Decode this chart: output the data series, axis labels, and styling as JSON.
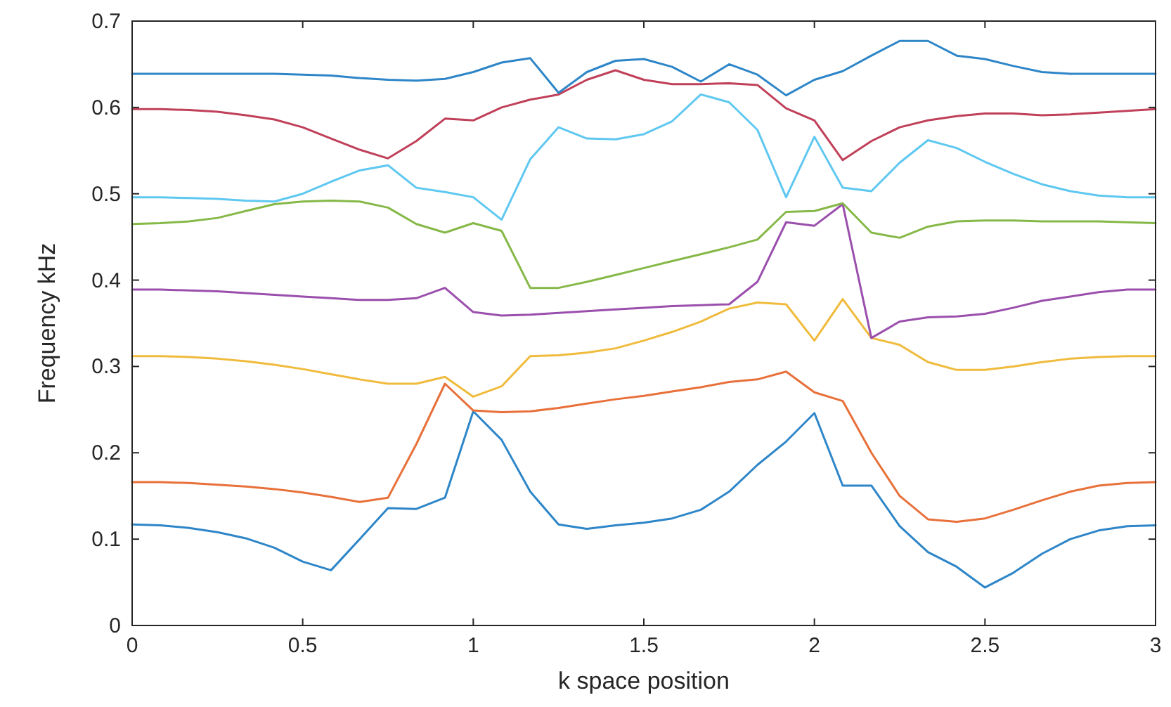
{
  "chart_data": {
    "type": "line",
    "xlabel": "k space position",
    "ylabel": "Frequency kHz",
    "xlim": [
      0,
      3
    ],
    "ylim": [
      0,
      0.7
    ],
    "xticks": [
      0,
      0.5,
      1,
      1.5,
      2,
      2.5,
      3
    ],
    "yticks": [
      0,
      0.1,
      0.2,
      0.3,
      0.4,
      0.5,
      0.6,
      0.7
    ],
    "grid": false,
    "marker": "none",
    "line_style": "solid",
    "x": [
      0,
      0.083,
      0.167,
      0.25,
      0.333,
      0.417,
      0.5,
      0.583,
      0.667,
      0.75,
      0.833,
      0.917,
      1,
      1.083,
      1.167,
      1.25,
      1.333,
      1.417,
      1.5,
      1.583,
      1.667,
      1.75,
      1.833,
      1.917,
      2,
      2.083,
      2.167,
      2.25,
      2.333,
      2.417,
      2.5,
      2.583,
      2.667,
      2.75,
      2.833,
      2.917,
      3
    ],
    "series": [
      {
        "color": "#2e86c8",
        "values": [
          0.117,
          0.116,
          0.113,
          0.108,
          0.101,
          0.09,
          0.074,
          0.064,
          0.1,
          0.136,
          0.135,
          0.148,
          0.248,
          0.215,
          0.155,
          0.117,
          0.112,
          0.116,
          0.119,
          0.124,
          0.134,
          0.155,
          0.186,
          0.213,
          0.246,
          0.162,
          0.162,
          0.115,
          0.085,
          0.068,
          0.044,
          0.061,
          0.083,
          0.1,
          0.11,
          0.115,
          0.116
        ]
      },
      {
        "color": "#e8703a",
        "values": [
          0.166,
          0.166,
          0.165,
          0.163,
          0.161,
          0.158,
          0.154,
          0.149,
          0.143,
          0.148,
          0.21,
          0.28,
          0.249,
          0.247,
          0.248,
          0.252,
          0.257,
          0.262,
          0.266,
          0.271,
          0.276,
          0.282,
          0.285,
          0.294,
          0.27,
          0.26,
          0.2,
          0.15,
          0.123,
          0.12,
          0.124,
          0.134,
          0.145,
          0.155,
          0.162,
          0.165,
          0.166
        ]
      },
      {
        "color": "#f0bb3c",
        "values": [
          0.312,
          0.312,
          0.311,
          0.309,
          0.306,
          0.302,
          0.297,
          0.291,
          0.285,
          0.28,
          0.28,
          0.288,
          0.265,
          0.277,
          0.312,
          0.313,
          0.316,
          0.321,
          0.33,
          0.34,
          0.352,
          0.367,
          0.374,
          0.372,
          0.33,
          0.378,
          0.333,
          0.325,
          0.305,
          0.296,
          0.296,
          0.3,
          0.305,
          0.309,
          0.311,
          0.312,
          0.312
        ]
      },
      {
        "color": "#9b4fad",
        "values": [
          0.389,
          0.389,
          0.388,
          0.387,
          0.385,
          0.383,
          0.381,
          0.379,
          0.377,
          0.377,
          0.379,
          0.391,
          0.363,
          0.359,
          0.36,
          0.362,
          0.364,
          0.366,
          0.368,
          0.37,
          0.371,
          0.372,
          0.398,
          0.467,
          0.463,
          0.488,
          0.333,
          0.352,
          0.357,
          0.358,
          0.361,
          0.368,
          0.376,
          0.381,
          0.386,
          0.389,
          0.389
        ]
      },
      {
        "color": "#86b848",
        "values": [
          0.465,
          0.466,
          0.468,
          0.472,
          0.48,
          0.488,
          0.491,
          0.492,
          0.491,
          0.484,
          0.465,
          0.455,
          0.466,
          0.457,
          0.391,
          0.391,
          0.398,
          0.406,
          0.414,
          0.422,
          0.43,
          0.438,
          0.447,
          0.479,
          0.48,
          0.489,
          0.455,
          0.449,
          0.462,
          0.468,
          0.469,
          0.469,
          0.468,
          0.468,
          0.468,
          0.467,
          0.466
        ]
      },
      {
        "color": "#5fc8f0",
        "values": [
          0.496,
          0.496,
          0.495,
          0.494,
          0.492,
          0.491,
          0.5,
          0.514,
          0.527,
          0.533,
          0.507,
          0.502,
          0.496,
          0.47,
          0.54,
          0.577,
          0.564,
          0.563,
          0.569,
          0.584,
          0.615,
          0.606,
          0.574,
          0.496,
          0.566,
          0.507,
          0.503,
          0.536,
          0.562,
          0.553,
          0.537,
          0.523,
          0.511,
          0.503,
          0.498,
          0.496,
          0.496
        ]
      },
      {
        "color": "#c0405a",
        "values": [
          0.598,
          0.598,
          0.597,
          0.595,
          0.591,
          0.586,
          0.577,
          0.564,
          0.551,
          0.541,
          0.561,
          0.587,
          0.585,
          0.6,
          0.609,
          0.615,
          0.632,
          0.643,
          0.632,
          0.627,
          0.627,
          0.628,
          0.626,
          0.599,
          0.585,
          0.539,
          0.561,
          0.577,
          0.585,
          0.59,
          0.593,
          0.593,
          0.591,
          0.592,
          0.594,
          0.596,
          0.598
        ]
      },
      {
        "color": "#2e86c8",
        "values": [
          0.639,
          0.639,
          0.639,
          0.639,
          0.639,
          0.639,
          0.638,
          0.637,
          0.634,
          0.632,
          0.631,
          0.633,
          0.641,
          0.652,
          0.657,
          0.617,
          0.641,
          0.654,
          0.656,
          0.647,
          0.63,
          0.65,
          0.638,
          0.614,
          0.632,
          0.642,
          0.66,
          0.677,
          0.677,
          0.66,
          0.656,
          0.648,
          0.641,
          0.639,
          0.639,
          0.639,
          0.639
        ]
      }
    ]
  }
}
